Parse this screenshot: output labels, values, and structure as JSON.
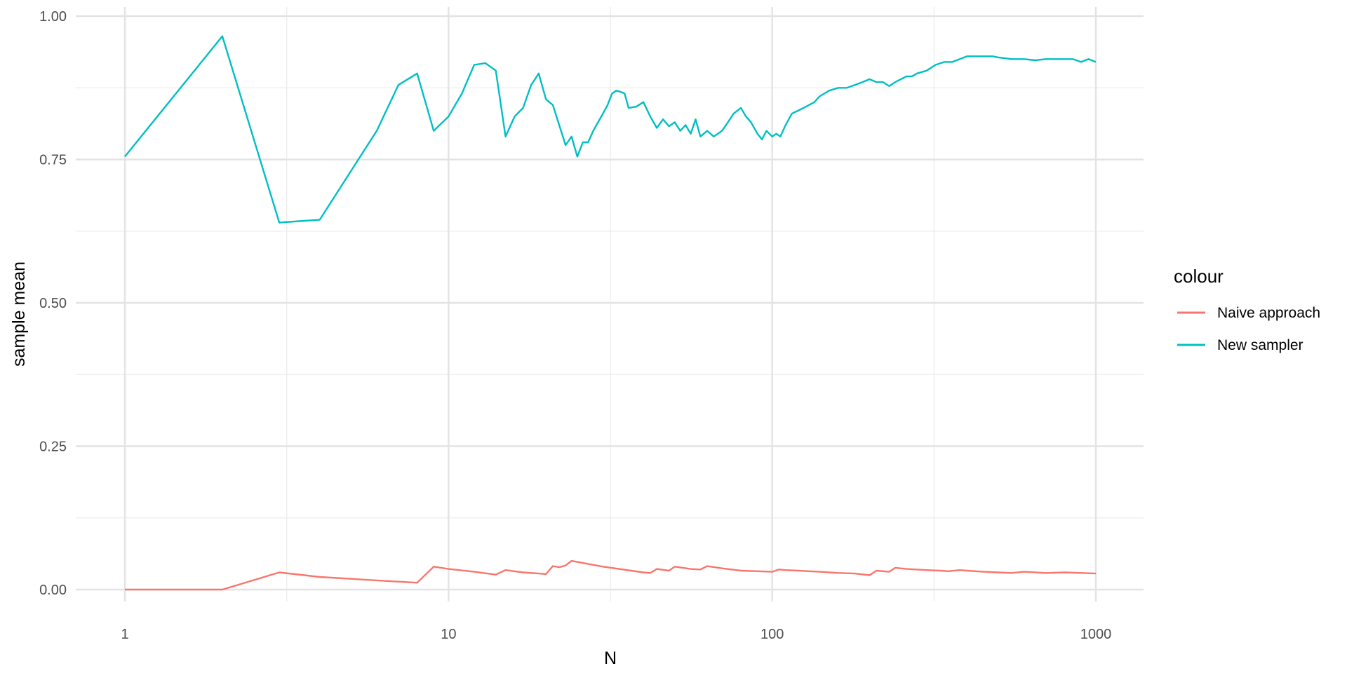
{
  "chart_data": {
    "type": "line",
    "title": "",
    "xlabel": "N",
    "ylabel": "sample mean",
    "x_scale": "log10",
    "xlim": [
      1,
      1000
    ],
    "ylim": [
      0,
      1
    ],
    "x_ticks": [
      1,
      10,
      100,
      1000
    ],
    "x_tick_labels": [
      "1",
      "10",
      "100",
      "1000"
    ],
    "y_ticks": [
      0,
      0.25,
      0.5,
      0.75,
      1.0
    ],
    "y_tick_labels": [
      "0.00",
      "0.25",
      "0.50",
      "0.75",
      "1.00"
    ],
    "grid": true,
    "legend_position": "right",
    "legend_title": "colour",
    "series": [
      {
        "name": "Naive approach",
        "color": "#F8766D",
        "x": [
          1,
          2,
          3,
          4,
          6,
          8,
          9,
          10,
          12,
          14,
          15,
          17,
          19,
          20,
          21,
          22,
          23,
          24,
          30,
          40,
          42,
          44,
          48,
          50,
          56,
          60,
          63,
          70,
          80,
          90,
          100,
          105,
          110,
          120,
          130,
          140,
          150,
          160,
          180,
          200,
          210,
          230,
          240,
          260,
          280,
          300,
          330,
          350,
          380,
          400,
          450,
          500,
          550,
          600,
          700,
          800,
          900,
          1000
        ],
        "y": [
          0.0,
          0.0,
          0.03,
          0.022,
          0.016,
          0.012,
          0.04,
          0.036,
          0.031,
          0.026,
          0.034,
          0.03,
          0.028,
          0.027,
          0.041,
          0.039,
          0.042,
          0.05,
          0.04,
          0.03,
          0.029,
          0.036,
          0.033,
          0.04,
          0.036,
          0.035,
          0.041,
          0.037,
          0.033,
          0.032,
          0.031,
          0.035,
          0.034,
          0.033,
          0.032,
          0.031,
          0.03,
          0.029,
          0.028,
          0.025,
          0.033,
          0.031,
          0.038,
          0.036,
          0.035,
          0.034,
          0.033,
          0.032,
          0.034,
          0.033,
          0.031,
          0.03,
          0.029,
          0.031,
          0.029,
          0.03,
          0.029,
          0.028
        ]
      },
      {
        "name": "New sampler",
        "color": "#00BFC4",
        "x": [
          1,
          2,
          3,
          4,
          6,
          7,
          8,
          9,
          10,
          11,
          12,
          13,
          14,
          15,
          16,
          17,
          18,
          19,
          20,
          21,
          23,
          24,
          25,
          26,
          27,
          28,
          30,
          31,
          32,
          33,
          34,
          35,
          36,
          38,
          40,
          42,
          44,
          46,
          48,
          50,
          52,
          54,
          56,
          58,
          60,
          63,
          66,
          70,
          73,
          76,
          80,
          83,
          86,
          90,
          93,
          96,
          100,
          103,
          106,
          110,
          115,
          120,
          125,
          130,
          135,
          140,
          150,
          160,
          170,
          180,
          190,
          200,
          210,
          220,
          230,
          240,
          250,
          260,
          270,
          280,
          300,
          320,
          340,
          360,
          380,
          400,
          420,
          450,
          480,
          500,
          550,
          600,
          650,
          700,
          750,
          800,
          850,
          900,
          950,
          1000
        ],
        "y": [
          0.755,
          0.965,
          0.64,
          0.645,
          0.8,
          0.88,
          0.9,
          0.8,
          0.825,
          0.865,
          0.915,
          0.918,
          0.905,
          0.79,
          0.825,
          0.84,
          0.88,
          0.9,
          0.855,
          0.845,
          0.775,
          0.79,
          0.755,
          0.78,
          0.78,
          0.8,
          0.83,
          0.845,
          0.865,
          0.87,
          0.868,
          0.865,
          0.84,
          0.842,
          0.85,
          0.825,
          0.805,
          0.82,
          0.808,
          0.815,
          0.8,
          0.81,
          0.795,
          0.82,
          0.79,
          0.8,
          0.79,
          0.8,
          0.815,
          0.83,
          0.84,
          0.825,
          0.815,
          0.795,
          0.785,
          0.8,
          0.79,
          0.795,
          0.79,
          0.81,
          0.83,
          0.835,
          0.84,
          0.845,
          0.85,
          0.86,
          0.87,
          0.875,
          0.875,
          0.88,
          0.885,
          0.89,
          0.885,
          0.885,
          0.878,
          0.885,
          0.89,
          0.895,
          0.895,
          0.9,
          0.905,
          0.915,
          0.92,
          0.92,
          0.925,
          0.93,
          0.93,
          0.93,
          0.93,
          0.928,
          0.925,
          0.925,
          0.923,
          0.925,
          0.925,
          0.925,
          0.925,
          0.92,
          0.925,
          0.92
        ]
      }
    ]
  }
}
